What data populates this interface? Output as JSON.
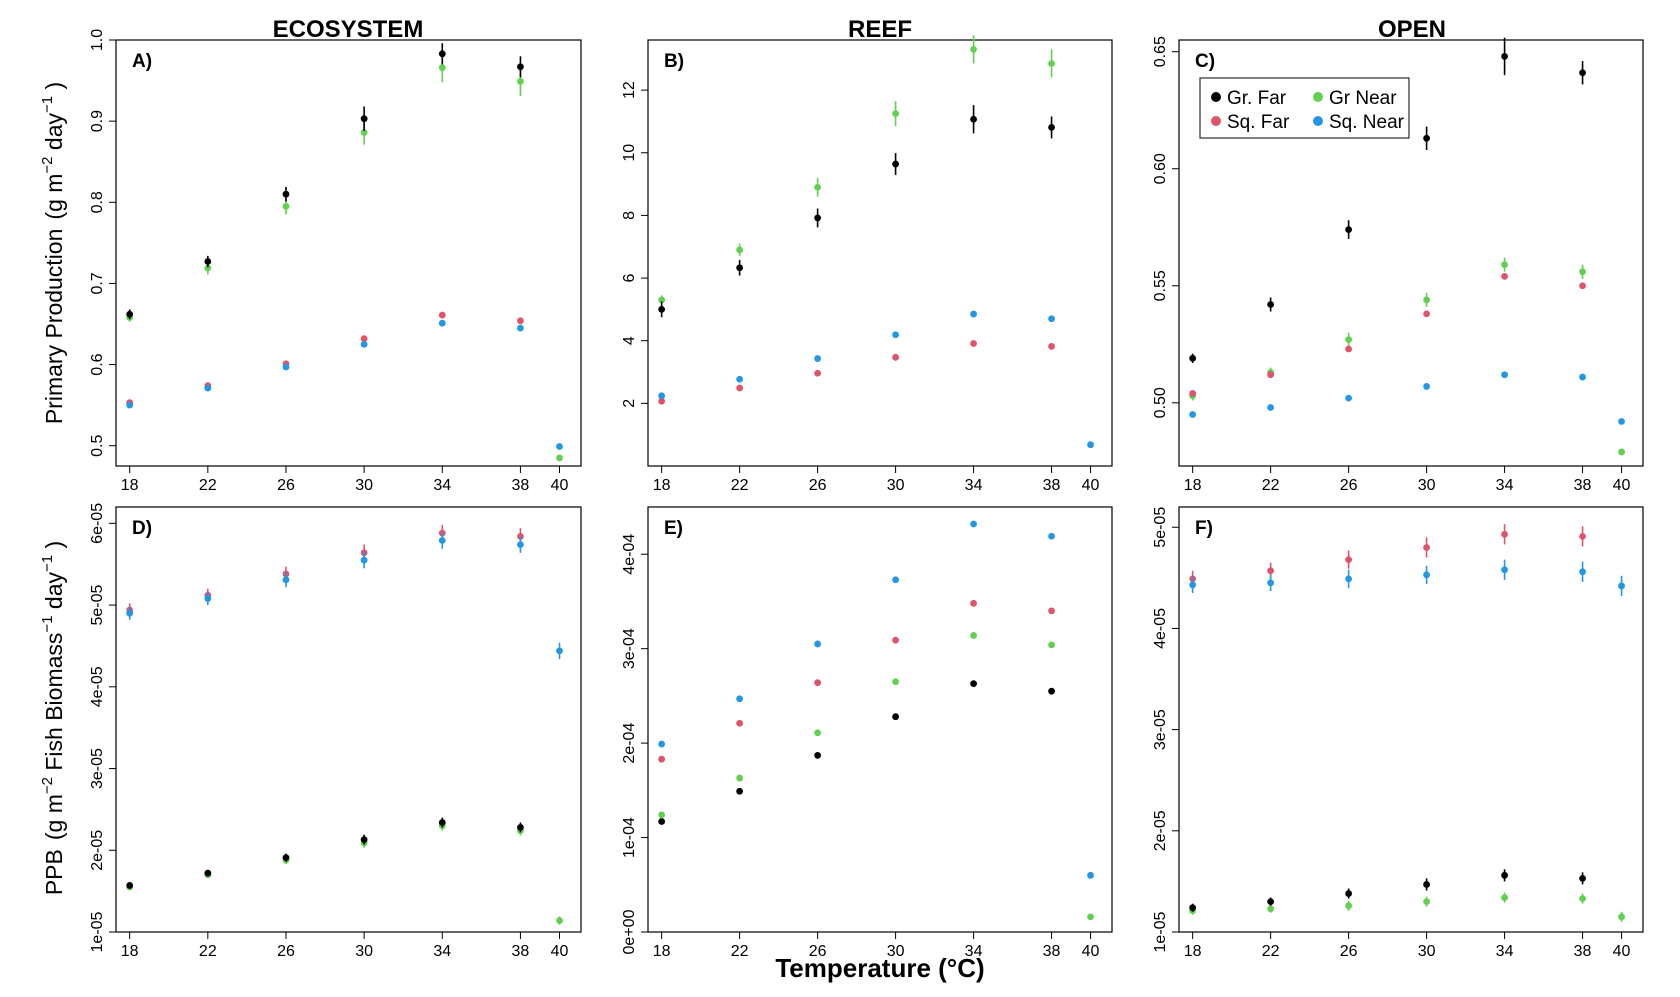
{
  "figure": {
    "column_titles": [
      "ECOSYSTEM",
      "REEF",
      "OPEN"
    ],
    "xlabel": "Temperature (°C)",
    "ylabel_top": "Primary Production",
    "ylabel_bottom": "PPB"
  },
  "colors": {
    "Gr. Far": "#000000",
    "Gr Near": "#61D04F",
    "Sq. Far": "#DF536B",
    "Sq. Near": "#2297E6"
  },
  "legend": {
    "placement": "top-left of panel C",
    "entries": [
      "Gr. Far",
      "Gr Near",
      "Sq. Far",
      "Sq. Near"
    ]
  },
  "chart_data": [
    {
      "panel": "A)",
      "column": "ECOSYSTEM",
      "type": "scatter",
      "x": [
        18,
        22,
        26,
        30,
        34,
        38,
        40
      ],
      "xticks": [
        "18",
        "22",
        "26",
        "30",
        "34",
        "38",
        "40"
      ],
      "ylim": [
        0.475,
        1.0
      ],
      "yticks": [
        0.5,
        0.6,
        0.7,
        0.8,
        0.9,
        1.0
      ],
      "ytick_labels": [
        "0.5",
        "0.6",
        "0.7",
        "0.8",
        "0.9",
        "1.0"
      ],
      "series": [
        {
          "name": "Gr. Far",
          "values": [
            0.662,
            0.727,
            0.81,
            0.903,
            0.983,
            0.967,
            null
          ],
          "err": [
            0.006,
            0.007,
            0.009,
            0.015,
            0.013,
            0.013,
            null
          ]
        },
        {
          "name": "Gr Near",
          "values": [
            0.658,
            0.719,
            0.795,
            0.886,
            0.966,
            0.949,
            0.485
          ],
          "err": [
            0.005,
            0.008,
            0.01,
            0.015,
            0.018,
            0.018,
            0.0
          ]
        },
        {
          "name": "Sq. Far",
          "values": [
            0.553,
            0.574,
            0.601,
            0.632,
            0.661,
            0.654,
            null
          ],
          "err": [
            0,
            0,
            0,
            0,
            0,
            0,
            null
          ]
        },
        {
          "name": "Sq. Near",
          "values": [
            0.55,
            0.571,
            0.597,
            0.625,
            0.651,
            0.645,
            0.499
          ],
          "err": [
            0,
            0,
            0,
            0,
            0,
            0,
            0
          ]
        }
      ]
    },
    {
      "panel": "B)",
      "column": "REEF",
      "type": "scatter",
      "x": [
        18,
        22,
        26,
        30,
        34,
        38,
        40
      ],
      "xticks": [
        "18",
        "22",
        "26",
        "30",
        "34",
        "38",
        "40"
      ],
      "ylim": [
        0.0,
        13.6
      ],
      "yticks": [
        2,
        4,
        6,
        8,
        10,
        12
      ],
      "ytick_labels": [
        "2",
        "4",
        "6",
        "8",
        "10",
        "12"
      ],
      "series": [
        {
          "name": "Gr. Far",
          "values": [
            5.0,
            6.33,
            7.92,
            9.64,
            11.07,
            10.81,
            null
          ],
          "err": [
            0.25,
            0.25,
            0.3,
            0.35,
            0.45,
            0.35,
            null
          ]
        },
        {
          "name": "Gr Near",
          "values": [
            5.3,
            6.9,
            8.9,
            11.25,
            13.3,
            12.85,
            null
          ],
          "err": [
            0.15,
            0.2,
            0.3,
            0.4,
            0.45,
            0.45,
            null
          ]
        },
        {
          "name": "Sq. Far",
          "values": [
            2.07,
            2.49,
            2.96,
            3.47,
            3.91,
            3.82,
            null
          ],
          "err": [
            0,
            0,
            0,
            0,
            0,
            0,
            null
          ]
        },
        {
          "name": "Sq. Near",
          "values": [
            2.24,
            2.77,
            3.43,
            4.19,
            4.85,
            4.7,
            0.68
          ],
          "err": [
            0,
            0,
            0,
            0,
            0,
            0,
            0
          ]
        }
      ]
    },
    {
      "panel": "C)",
      "column": "OPEN",
      "type": "scatter",
      "x": [
        18,
        22,
        26,
        30,
        34,
        38,
        40
      ],
      "xticks": [
        "18",
        "22",
        "26",
        "30",
        "34",
        "38",
        "40"
      ],
      "ylim": [
        0.473,
        0.655
      ],
      "yticks": [
        0.5,
        0.55,
        0.6,
        0.65
      ],
      "ytick_labels": [
        "0.50",
        "0.55",
        "0.60",
        "0.65"
      ],
      "series": [
        {
          "name": "Gr. Far",
          "values": [
            0.519,
            0.542,
            0.574,
            0.613,
            0.648,
            0.641,
            null
          ],
          "err": [
            0.002,
            0.003,
            0.004,
            0.005,
            0.008,
            0.005,
            null
          ]
        },
        {
          "name": "Gr Near",
          "values": [
            0.503,
            0.513,
            0.527,
            0.544,
            0.559,
            0.556,
            0.479
          ],
          "err": [
            0.002,
            0.002,
            0.003,
            0.003,
            0.003,
            0.003,
            0
          ]
        },
        {
          "name": "Sq. Far",
          "values": [
            0.504,
            0.512,
            0.523,
            0.538,
            0.554,
            0.55,
            null
          ],
          "err": [
            0,
            0,
            0,
            0,
            0,
            0,
            null
          ]
        },
        {
          "name": "Sq. Near",
          "values": [
            0.495,
            0.498,
            0.502,
            0.507,
            0.512,
            0.511,
            0.492
          ],
          "err": [
            0,
            0,
            0,
            0,
            0,
            0,
            0
          ]
        }
      ]
    },
    {
      "panel": "D)",
      "column": "ECOSYSTEM",
      "type": "scatter",
      "x": [
        18,
        22,
        26,
        30,
        34,
        38,
        40
      ],
      "xticks": [
        "18",
        "22",
        "26",
        "30",
        "34",
        "38",
        "40"
      ],
      "ylim": [
        1e-05,
        6.2e-05
      ],
      "yticks": [
        1e-05,
        2e-05,
        3e-05,
        4e-05,
        5e-05,
        6e-05
      ],
      "ytick_labels": [
        "1e-05",
        "2e-05",
        "3e-05",
        "4e-05",
        "5e-05",
        "6e-05"
      ],
      "series": [
        {
          "name": "Gr. Far",
          "values": [
            1.57e-05,
            1.72e-05,
            1.91e-05,
            2.13e-05,
            2.34e-05,
            2.28e-05,
            null
          ],
          "err": [
            4e-07,
            4e-07,
            5e-07,
            6e-07,
            6e-07,
            6e-07,
            null
          ]
        },
        {
          "name": "Gr Near",
          "values": [
            1.55e-05,
            1.7e-05,
            1.88e-05,
            2.09e-05,
            2.3e-05,
            2.24e-05,
            1.14e-05
          ],
          "err": [
            4e-07,
            4e-07,
            5e-07,
            6e-07,
            6e-07,
            6e-07,
            5e-07
          ]
        },
        {
          "name": "Sq. Far",
          "values": [
            4.94e-05,
            5.12e-05,
            5.38e-05,
            5.64e-05,
            5.88e-05,
            5.84e-05,
            null
          ],
          "err": [
            8e-07,
            8e-07,
            9e-07,
            1e-06,
            1e-06,
            1e-06,
            null
          ]
        },
        {
          "name": "Sq. Near",
          "values": [
            4.9e-05,
            5.08e-05,
            5.31e-05,
            5.55e-05,
            5.79e-05,
            5.74e-05,
            4.44e-05
          ],
          "err": [
            8e-07,
            8e-07,
            9e-07,
            1e-06,
            1e-06,
            1e-06,
            1e-06
          ]
        }
      ]
    },
    {
      "panel": "E)",
      "column": "REEF",
      "type": "scatter",
      "x": [
        18,
        22,
        26,
        30,
        34,
        38,
        40
      ],
      "xticks": [
        "18",
        "22",
        "26",
        "30",
        "34",
        "38",
        "40"
      ],
      "ylim": [
        0.0,
        0.00045
      ],
      "yticks": [
        0.0,
        0.0001,
        0.0002,
        0.0003,
        0.0004
      ],
      "ytick_labels": [
        "0e+00",
        "1e-04",
        "2e-04",
        "3e-04",
        "4e-04"
      ],
      "series": [
        {
          "name": "Gr. Far",
          "values": [
            0.000117,
            0.000149,
            0.000187,
            0.000228,
            0.000263,
            0.000255,
            null
          ],
          "err": [
            0,
            0,
            0,
            0,
            0,
            0,
            null
          ]
        },
        {
          "name": "Gr Near",
          "values": [
            0.000124,
            0.000163,
            0.000211,
            0.000265,
            0.000314,
            0.000304,
            1.6e-05
          ],
          "err": [
            0,
            0,
            0,
            0,
            0,
            0,
            0
          ]
        },
        {
          "name": "Sq. Far",
          "values": [
            0.000183,
            0.000221,
            0.000264,
            0.000309,
            0.000348,
            0.00034,
            null
          ],
          "err": [
            0,
            0,
            0,
            0,
            0,
            0,
            null
          ]
        },
        {
          "name": "Sq. Near",
          "values": [
            0.000199,
            0.000247,
            0.000305,
            0.000373,
            0.000432,
            0.000419,
            6e-05
          ],
          "err": [
            0,
            0,
            0,
            0,
            0,
            0,
            0
          ]
        }
      ]
    },
    {
      "panel": "F)",
      "column": "OPEN",
      "type": "scatter",
      "x": [
        18,
        22,
        26,
        30,
        34,
        38,
        40
      ],
      "xticks": [
        "18",
        "22",
        "26",
        "30",
        "34",
        "38",
        "40"
      ],
      "ylim": [
        1e-05,
        5.2e-05
      ],
      "yticks": [
        1e-05,
        2e-05,
        3e-05,
        4e-05,
        5e-05
      ],
      "ytick_labels": [
        "1e-05",
        "2e-05",
        "3e-05",
        "4e-05",
        "5e-05"
      ],
      "series": [
        {
          "name": "Gr. Far",
          "values": [
            1.24e-05,
            1.3e-05,
            1.38e-05,
            1.47e-05,
            1.56e-05,
            1.53e-05,
            null
          ],
          "err": [
            4e-07,
            4e-07,
            5e-07,
            6e-07,
            6e-07,
            6e-07,
            null
          ]
        },
        {
          "name": "Gr Near",
          "values": [
            1.21e-05,
            1.23e-05,
            1.26e-05,
            1.3e-05,
            1.34e-05,
            1.33e-05,
            1.15e-05
          ],
          "err": [
            4e-07,
            4e-07,
            5e-07,
            5e-07,
            5e-07,
            5e-07,
            5e-07
          ]
        },
        {
          "name": "Sq. Far",
          "values": [
            4.49e-05,
            4.57e-05,
            4.68e-05,
            4.8e-05,
            4.93e-05,
            4.91e-05,
            null
          ],
          "err": [
            8e-07,
            8e-07,
            9e-07,
            1e-06,
            1e-06,
            1e-06,
            null
          ]
        },
        {
          "name": "Sq. Near",
          "values": [
            4.43e-05,
            4.45e-05,
            4.49e-05,
            4.53e-05,
            4.58e-05,
            4.56e-05,
            4.42e-05
          ],
          "err": [
            8e-07,
            8e-07,
            9e-07,
            9e-07,
            1e-06,
            1e-06,
            1e-06
          ]
        }
      ]
    }
  ]
}
